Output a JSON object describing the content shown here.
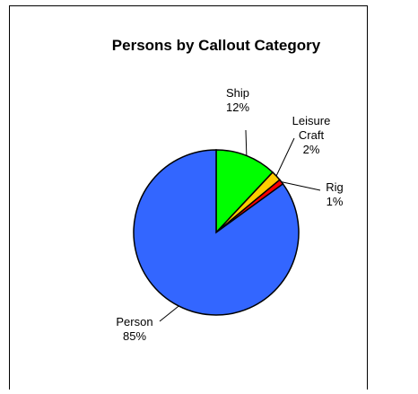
{
  "chart_data": {
    "type": "pie",
    "title": "Persons by Callout Category",
    "slices": [
      {
        "name": "Ship",
        "label_lines": [
          "Ship",
          "12%"
        ],
        "percent": 12,
        "color": "#00ff00"
      },
      {
        "name": "Leisure Craft",
        "label_lines": [
          "Leisure",
          "Craft",
          "2%"
        ],
        "percent": 2,
        "color": "#ffcc00"
      },
      {
        "name": "Rig",
        "label_lines": [
          "Rig",
          "1%"
        ],
        "percent": 1,
        "color": "#ff0000"
      },
      {
        "name": "Person",
        "label_lines": [
          "Person",
          "85%"
        ],
        "percent": 85,
        "color": "#3366ff"
      }
    ],
    "legend": "none"
  }
}
